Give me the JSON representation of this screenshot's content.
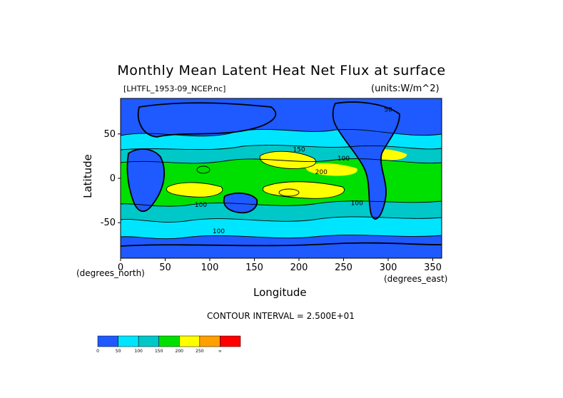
{
  "chart_data": {
    "type": "heatmap",
    "title": "Monthly Mean Latent Heat Net Flux at surface",
    "file_label": "[LHTFL_1953-09_NCEP.nc]",
    "units_label": "(units:W/m^2)",
    "xlabel": "Longitude",
    "ylabel": "Latitude",
    "x_unit_label": "(degrees_east)",
    "y_unit_label": "(degrees_north)",
    "contour_interval_label": "CONTOUR INTERVAL = 2.500E+01",
    "xlim": [
      0,
      360
    ],
    "ylim": [
      -90,
      90
    ],
    "x_ticks": [
      0,
      50,
      100,
      150,
      200,
      250,
      300,
      350
    ],
    "y_ticks": [
      50,
      0,
      -50
    ],
    "colorbar": {
      "levels": [
        "0",
        "50",
        "100",
        "150",
        "200",
        "250",
        "∞"
      ],
      "colors": [
        "#1e5aff",
        "#00e5ff",
        "#00c8c8",
        "#00e000",
        "#ffff00",
        "#ffa000",
        "#ff0000"
      ]
    },
    "contour_labels": [
      "100",
      "150",
      "200",
      "100",
      "100",
      "100",
      "50"
    ]
  }
}
